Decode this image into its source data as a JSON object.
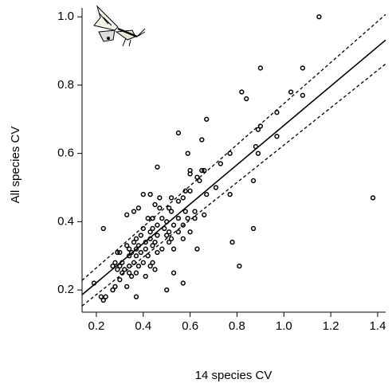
{
  "chart_data": {
    "type": "scatter",
    "xlabel": "14 species CV",
    "ylabel": "All species CV",
    "xlim": [
      0.139,
      1.434
    ],
    "ylim": [
      0.135,
      1.026
    ],
    "xticks": [
      0.2,
      0.4,
      0.6,
      0.8,
      {
        "value": 1.0,
        "label": "1.0"
      },
      1.2,
      1.4
    ],
    "yticks": [
      0.2,
      0.4,
      0.6,
      0.8,
      {
        "value": 1.0,
        "label": "1.0"
      }
    ],
    "color": "#000000",
    "x": [
      1.15,
      0.9,
      1.08,
      0.82,
      0.84,
      1.03,
      1.08,
      0.67,
      0.97,
      0.9,
      0.89,
      0.55,
      0.97,
      0.65,
      0.88,
      0.59,
      0.77,
      0.89,
      0.73,
      0.46,
      0.6,
      0.6,
      0.65,
      0.66,
      0.63,
      0.64,
      0.87,
      0.71,
      0.58,
      0.6,
      0.67,
      0.77,
      0.4,
      0.43,
      0.47,
      0.52,
      0.57,
      0.55,
      0.45,
      0.38,
      0.33,
      0.36,
      0.47,
      0.51,
      0.52,
      0.58,
      0.62,
      0.66,
      1.38,
      0.42,
      0.44,
      0.48,
      0.5,
      0.55,
      0.59,
      0.62,
      0.46,
      0.53,
      0.57,
      0.4,
      0.44,
      0.49,
      0.23,
      0.43,
      0.51,
      0.55,
      0.6,
      0.87,
      0.39,
      0.46,
      0.5,
      0.37,
      0.43,
      0.52,
      0.57,
      0.78,
      0.36,
      0.41,
      0.45,
      0.51,
      0.33,
      0.38,
      0.44,
      0.34,
      0.37,
      0.41,
      0.48,
      0.53,
      0.63,
      0.29,
      0.3,
      0.35,
      0.39,
      0.46,
      0.34,
      0.37,
      0.42,
      0.28,
      0.31,
      0.36,
      0.4,
      0.44,
      0.27,
      0.3,
      0.34,
      0.38,
      0.43,
      0.45,
      0.29,
      0.32,
      0.34,
      0.37,
      0.31,
      0.53,
      0.81,
      0.35,
      0.41,
      0.3,
      0.33,
      0.28,
      0.57,
      0.5,
      0.37,
      0.27,
      0.22,
      0.24,
      0.23,
      0.19
    ],
    "values": [
      1.0,
      0.85,
      0.85,
      0.78,
      0.76,
      0.78,
      0.77,
      0.7,
      0.72,
      0.68,
      0.67,
      0.66,
      0.65,
      0.64,
      0.62,
      0.6,
      0.6,
      0.6,
      0.57,
      0.56,
      0.55,
      0.54,
      0.55,
      0.55,
      0.53,
      0.52,
      0.52,
      0.5,
      0.49,
      0.49,
      0.48,
      0.48,
      0.48,
      0.48,
      0.47,
      0.47,
      0.47,
      0.46,
      0.45,
      0.44,
      0.42,
      0.43,
      0.44,
      0.44,
      0.43,
      0.43,
      0.43,
      0.42,
      0.47,
      0.41,
      0.41,
      0.41,
      0.4,
      0.41,
      0.41,
      0.41,
      0.39,
      0.39,
      0.39,
      0.38,
      0.38,
      0.38,
      0.38,
      0.37,
      0.37,
      0.37,
      0.37,
      0.38,
      0.36,
      0.36,
      0.36,
      0.35,
      0.35,
      0.35,
      0.35,
      0.34,
      0.34,
      0.34,
      0.34,
      0.34,
      0.33,
      0.33,
      0.33,
      0.32,
      0.32,
      0.32,
      0.32,
      0.32,
      0.32,
      0.31,
      0.31,
      0.31,
      0.31,
      0.31,
      0.3,
      0.3,
      0.3,
      0.28,
      0.28,
      0.28,
      0.28,
      0.28,
      0.27,
      0.27,
      0.27,
      0.27,
      0.27,
      0.26,
      0.26,
      0.26,
      0.25,
      0.25,
      0.25,
      0.25,
      0.27,
      0.24,
      0.24,
      0.23,
      0.21,
      0.21,
      0.22,
      0.2,
      0.18,
      0.2,
      0.18,
      0.18,
      0.17,
      0.22
    ],
    "fit_line": {
      "x": [
        0.139,
        1.434
      ],
      "y": [
        0.186,
        0.932
      ],
      "style": "solid"
    },
    "upper_band": {
      "x": [
        0.139,
        1.434
      ],
      "y": [
        0.228,
        1.007
      ],
      "style": "dashed"
    },
    "lower_band": {
      "x": [
        0.139,
        1.434
      ],
      "y": [
        0.153,
        0.862
      ],
      "style": "dashed"
    }
  }
}
